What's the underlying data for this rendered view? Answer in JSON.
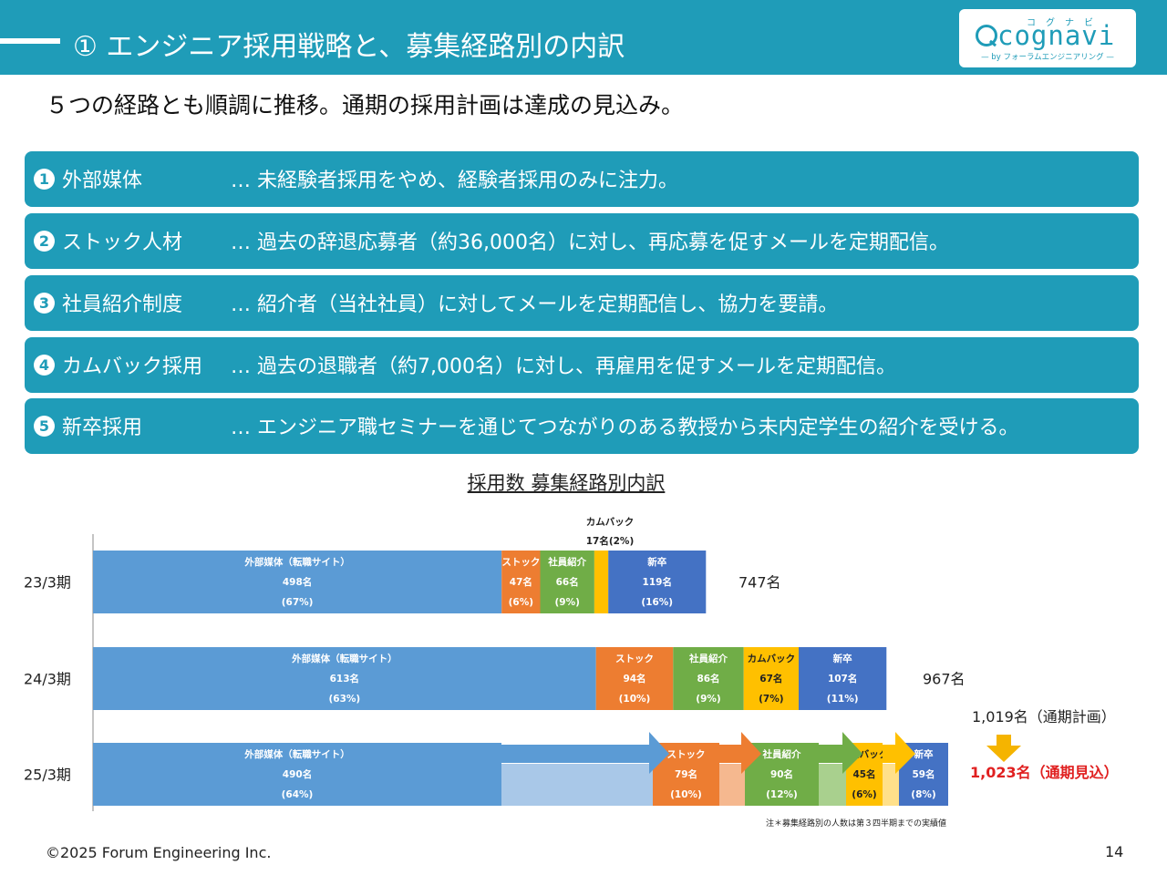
{
  "header": {
    "title": "① エンジニア採用戦略と、募集経路別の内訳"
  },
  "logo": {
    "kana": "コグナビ",
    "word": "cognavi",
    "sub": "— by フォーラムエンジニアリング —"
  },
  "subtitle": "５つの経路とも順調に推移。通期の採用計画は達成の見込み。",
  "strategies": [
    {
      "num": "1",
      "name": "外部媒体",
      "desc": "… 未経験者採用をやめ、経験者採用のみに注力。"
    },
    {
      "num": "2",
      "name": "ストック人材",
      "desc": "… 過去の辞退応募者（約36,000名）に対し、再応募を促すメールを定期配信。"
    },
    {
      "num": "3",
      "name": "社員紹介制度",
      "desc": "… 紹介者（当社社員）に対してメールを定期配信し、協力を要請。"
    },
    {
      "num": "4",
      "name": "カムバック採用",
      "desc": "… 過去の退職者（約7,000名）に対し、再雇用を促すメールを定期配信。"
    },
    {
      "num": "5",
      "name": "新卒採用",
      "desc": "… エンジニア職セミナーを通じてつながりのある教授から未内定学生の紹介を受ける。"
    }
  ],
  "chart_data": {
    "type": "bar",
    "orientation": "horizontal-stacked",
    "title": "採用数 募集経路別内訳",
    "categories": [
      "23/3期",
      "24/3期",
      "25/3期"
    ],
    "series": [
      {
        "name": "外部媒体",
        "label": "外部媒体（転職サイト）",
        "color": "#5b9bd5",
        "values": [
          498,
          613,
          490
        ],
        "pct": [
          "(67%)",
          "(63%)",
          "(64%)"
        ]
      },
      {
        "name": "ストック",
        "label": "ストック",
        "color": "#ed7d31",
        "values": [
          47,
          94,
          79
        ],
        "pct": [
          "(6%)",
          "(10%)",
          "(10%)"
        ]
      },
      {
        "name": "社員紹介",
        "label": "社員紹介",
        "color": "#70ad47",
        "values": [
          66,
          86,
          90
        ],
        "pct": [
          "(9%)",
          "(9%)",
          "(12%)"
        ]
      },
      {
        "name": "カムバック",
        "label": "カムバック",
        "color": "#ffc000",
        "values": [
          17,
          67,
          45
        ],
        "pct": [
          "(2%)",
          "(7%)",
          "(6%)"
        ]
      },
      {
        "name": "新卒",
        "label": "新卒",
        "color": "#4472c4",
        "values": [
          119,
          107,
          59
        ],
        "pct": [
          "(16%)",
          "(11%)",
          "(8%)"
        ]
      }
    ],
    "totals": [
      "747名",
      "967名",
      ""
    ],
    "annotations": {
      "comeback_23_line1": "カムバック",
      "comeback_23_line2": "17名(2%)",
      "plan": "1,019名（通期計画）",
      "forecast": "1,023名（通期見込）",
      "note": "注＊募集経路別の人数は第３四半期までの実績値"
    },
    "forecast_extension": {
      "category": "25/3期",
      "colors": [
        "#a9c8e8",
        "#f5b88f",
        "#a9d08e",
        "#ffe08a"
      ]
    }
  },
  "footer": {
    "copyright": "©2025 Forum Engineering Inc.",
    "page": "14"
  }
}
